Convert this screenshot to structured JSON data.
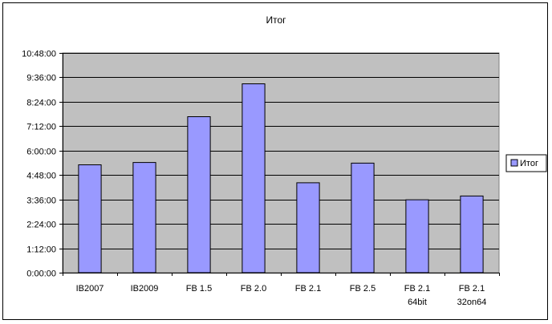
{
  "chart_data": {
    "type": "bar",
    "title": "Итог",
    "xlabel": "",
    "ylabel": "",
    "categories": [
      [
        "IB2007"
      ],
      [
        "IB2009"
      ],
      [
        "FB 1.5"
      ],
      [
        "FB 2.0"
      ],
      [
        "FB 2.1"
      ],
      [
        "FB 2.5"
      ],
      [
        "FB 2.1",
        "64bit"
      ],
      [
        "FB 2.1",
        "32on64"
      ]
    ],
    "series": [
      {
        "name": "Итог",
        "color": "#9999ff",
        "values_minutes": [
          318,
          325,
          460,
          557,
          265,
          323,
          215,
          226
        ]
      }
    ],
    "y_ticks": [
      "0:00:00",
      "1:12:00",
      "2:24:00",
      "3:36:00",
      "4:48:00",
      "6:00:00",
      "7:12:00",
      "8:24:00",
      "9:36:00",
      "10:48:00"
    ],
    "ylim_minutes": [
      0,
      648
    ],
    "plot_background": "#c0c0c0",
    "grid": true,
    "legend_position": "right"
  }
}
